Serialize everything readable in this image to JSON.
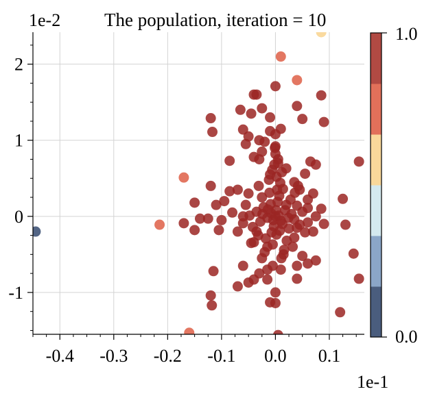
{
  "chart_data": {
    "type": "scatter",
    "title": "The population, iteration = 10",
    "x_offset_label": "1e-1",
    "y_offset_label": "1e-2",
    "xlim": [
      -0.045,
      0.0165
    ],
    "ylim": [
      -0.0155,
      0.0242
    ],
    "grid": true,
    "x_ticks": [
      -0.04,
      -0.03,
      -0.02,
      -0.01,
      0.0,
      0.01
    ],
    "x_tick_labels": [
      "-0.4",
      "-0.3",
      "-0.2",
      "-0.1",
      "0.0",
      "0.1"
    ],
    "y_ticks": [
      -0.01,
      0.0,
      0.01,
      0.02
    ],
    "y_tick_labels": [
      "-1",
      "0",
      "1",
      "2"
    ],
    "colorbar": {
      "min_label": "0.0",
      "max_label": "1.0",
      "colors": [
        "#4a5d7e",
        "#8ba6c8",
        "#d4e9ef",
        "#fad89a",
        "#e2705a",
        "#b14a43"
      ]
    },
    "point_color": "#9b2623",
    "point_opacity": 0.85,
    "points": [
      {
        "x": 0.0004,
        "y": 0.0019
      },
      {
        "x": -0.0008,
        "y": 0.0004
      },
      {
        "x": 0.001,
        "y": -0.0006
      },
      {
        "x": -0.0015,
        "y": -0.0002
      },
      {
        "x": 0.0018,
        "y": 0.0008
      },
      {
        "x": -0.0003,
        "y": -0.0013
      },
      {
        "x": 0.0007,
        "y": 0.0027
      },
      {
        "x": -0.0022,
        "y": 0.0012
      },
      {
        "x": 0.0025,
        "y": -0.0016
      },
      {
        "x": -0.0011,
        "y": 0.0031
      },
      {
        "x": 0.0002,
        "y": -0.0024
      },
      {
        "x": 0.003,
        "y": 0.0003
      },
      {
        "x": -0.0028,
        "y": -0.0007
      },
      {
        "x": 0.0014,
        "y": 0.0036
      },
      {
        "x": -0.0018,
        "y": -0.0029
      },
      {
        "x": 0.0035,
        "y": -0.0004
      },
      {
        "x": -0.0035,
        "y": 0.0006
      },
      {
        "x": 0.0009,
        "y": 0.0044
      },
      {
        "x": -0.0005,
        "y": -0.0037
      },
      {
        "x": 0.004,
        "y": 0.0014
      },
      {
        "x": -0.0042,
        "y": -0.0014
      },
      {
        "x": 0.0021,
        "y": -0.0032
      },
      {
        "x": -0.0025,
        "y": 0.0025
      },
      {
        "x": 0.0045,
        "y": -0.0011
      },
      {
        "x": -0.0048,
        "y": 0.0001
      },
      {
        "x": 0.0002,
        "y": 0.0052
      },
      {
        "x": 0.005,
        "y": 0.0006
      },
      {
        "x": -0.0032,
        "y": -0.0025
      },
      {
        "x": 0.0028,
        "y": 0.0022
      },
      {
        "x": -0.0012,
        "y": 0.0048
      },
      {
        "x": 0.0016,
        "y": -0.0044
      },
      {
        "x": -0.0055,
        "y": 0.0015
      },
      {
        "x": 0.0055,
        "y": -0.0021
      },
      {
        "x": -0.002,
        "y": -0.0047
      },
      {
        "x": 0.0036,
        "y": 0.0031
      },
      {
        "x": -0.0006,
        "y": 0.0061
      },
      {
        "x": 0.006,
        "y": 0.0011
      },
      {
        "x": -0.006,
        "y": -0.0009
      },
      {
        "x": 0.0011,
        "y": -0.0055
      },
      {
        "x": 0.0001,
        "y": 0.0008
      },
      {
        "x": -0.0004,
        "y": -0.0005
      },
      {
        "x": 0.0006,
        "y": 0.0001
      },
      {
        "x": -0.0009,
        "y": 0.0016
      },
      {
        "x": 0.0013,
        "y": -0.001
      },
      {
        "x": 0.0,
        "y": 0.0
      },
      {
        "x": 0.0003,
        "y": 0.0035
      },
      {
        "x": -0.0002,
        "y": 0.0068
      },
      {
        "x": 0.0008,
        "y": -0.0019
      },
      {
        "x": -0.0014,
        "y": 0.0009
      },
      {
        "x": 0.002,
        "y": 0.0015
      },
      {
        "x": -0.0007,
        "y": -0.0021
      },
      {
        "x": 0.0024,
        "y": -0.0002
      },
      {
        "x": -0.0024,
        "y": 0.0003
      },
      {
        "x": 0.0012,
        "y": 0.0058
      },
      {
        "x": -0.0031,
        "y": 0.004
      },
      {
        "x": 0.0032,
        "y": -0.004
      },
      {
        "x": -0.004,
        "y": -0.0034
      },
      {
        "x": 0.0042,
        "y": 0.004
      },
      {
        "x": 0.0005,
        "y": 0.0075
      },
      {
        "x": -0.0001,
        "y": 0.009
      },
      {
        "x": -0.004,
        "y": 0.016
      },
      {
        "x": -0.0035,
        "y": 0.016
      },
      {
        "x": 0.0,
        "y": 0.0171
      },
      {
        "x": 0.0085,
        "y": 0.0159
      },
      {
        "x": 0.004,
        "y": 0.0145
      },
      {
        "x": -0.0065,
        "y": 0.014
      },
      {
        "x": -0.0025,
        "y": 0.0142
      },
      {
        "x": -0.0045,
        "y": 0.0135
      },
      {
        "x": 0.005,
        "y": 0.0128
      },
      {
        "x": -0.012,
        "y": 0.0129
      },
      {
        "x": 0.009,
        "y": 0.0124
      },
      {
        "x": -0.001,
        "y": 0.013
      },
      {
        "x": -0.0117,
        "y": 0.0111
      },
      {
        "x": -0.006,
        "y": 0.0114
      },
      {
        "x": -0.001,
        "y": 0.0112
      },
      {
        "x": 0.001,
        "y": 0.0115
      },
      {
        "x": -0.005,
        "y": 0.0105
      },
      {
        "x": -0.003,
        "y": 0.01
      },
      {
        "x": 0.0,
        "y": 0.0108
      },
      {
        "x": -0.0055,
        "y": 0.0095
      },
      {
        "x": -0.002,
        "y": 0.0098
      },
      {
        "x": 0.0,
        "y": 0.0092
      },
      {
        "x": -0.0025,
        "y": 0.0085
      },
      {
        "x": 0.0,
        "y": 0.0082
      },
      {
        "x": -0.004,
        "y": 0.0078
      },
      {
        "x": -0.0085,
        "y": 0.0073
      },
      {
        "x": -0.003,
        "y": 0.0075
      },
      {
        "x": 0.0005,
        "y": 0.007
      },
      {
        "x": 0.0065,
        "y": 0.0072
      },
      {
        "x": 0.0155,
        "y": 0.0072
      },
      {
        "x": 0.0075,
        "y": 0.0068
      },
      {
        "x": 0.002,
        "y": 0.0063
      },
      {
        "x": 0.0055,
        "y": 0.0056
      },
      {
        "x": -0.001,
        "y": 0.0055
      },
      {
        "x": 0.0035,
        "y": 0.0045
      },
      {
        "x": -0.012,
        "y": 0.004
      },
      {
        "x": -0.007,
        "y": 0.0035
      },
      {
        "x": -0.0085,
        "y": 0.0033
      },
      {
        "x": 0.0045,
        "y": 0.0035
      },
      {
        "x": 0.007,
        "y": 0.003
      },
      {
        "x": -0.005,
        "y": 0.003
      },
      {
        "x": 0.0125,
        "y": 0.0023
      },
      {
        "x": -0.0095,
        "y": 0.002
      },
      {
        "x": 0.006,
        "y": 0.0022
      },
      {
        "x": -0.015,
        "y": 0.0018
      },
      {
        "x": -0.011,
        "y": 0.0015
      },
      {
        "x": 0.0085,
        "y": 0.001
      },
      {
        "x": -0.008,
        "y": 0.0005
      },
      {
        "x": -0.006,
        "y": 0.0
      },
      {
        "x": 0.0075,
        "y": 0.0
      },
      {
        "x": -0.014,
        "y": -0.0003
      },
      {
        "x": -0.0125,
        "y": -0.0003
      },
      {
        "x": -0.01,
        "y": -0.0005
      },
      {
        "x": -0.017,
        "y": -0.0009
      },
      {
        "x": 0.006,
        "y": -0.0008
      },
      {
        "x": 0.013,
        "y": -0.0011
      },
      {
        "x": 0.009,
        "y": -0.001
      },
      {
        "x": -0.015,
        "y": -0.0018
      },
      {
        "x": -0.0105,
        "y": -0.0018
      },
      {
        "x": -0.007,
        "y": -0.002
      },
      {
        "x": 0.004,
        "y": -0.0015
      },
      {
        "x": 0.007,
        "y": -0.002
      },
      {
        "x": -0.0035,
        "y": -0.002
      },
      {
        "x": -0.0045,
        "y": -0.0035
      },
      {
        "x": 0.0035,
        "y": -0.0028
      },
      {
        "x": -0.0015,
        "y": -0.004
      },
      {
        "x": -0.0025,
        "y": -0.0055
      },
      {
        "x": 0.0015,
        "y": -0.005
      },
      {
        "x": 0.005,
        "y": -0.0052
      },
      {
        "x": -0.0005,
        "y": -0.0065
      },
      {
        "x": 0.004,
        "y": -0.0065
      },
      {
        "x": 0.0075,
        "y": -0.0058
      },
      {
        "x": 0.0145,
        "y": -0.0049
      },
      {
        "x": -0.006,
        "y": -0.0065
      },
      {
        "x": 0.006,
        "y": -0.0062
      },
      {
        "x": -0.0015,
        "y": -0.007
      },
      {
        "x": -0.003,
        "y": -0.0075
      },
      {
        "x": -0.0115,
        "y": -0.0072
      },
      {
        "x": 0.001,
        "y": -0.007
      },
      {
        "x": -0.004,
        "y": -0.0083
      },
      {
        "x": -0.0015,
        "y": -0.0083
      },
      {
        "x": 0.004,
        "y": -0.0082
      },
      {
        "x": 0.0155,
        "y": -0.0082
      },
      {
        "x": -0.005,
        "y": -0.0087
      },
      {
        "x": -0.007,
        "y": -0.0092
      },
      {
        "x": 0.0,
        "y": -0.01
      },
      {
        "x": -0.012,
        "y": -0.0104
      },
      {
        "x": -0.0118,
        "y": -0.0117
      },
      {
        "x": -0.001,
        "y": -0.0113
      },
      {
        "x": 0.0,
        "y": -0.0114
      },
      {
        "x": 0.012,
        "y": -0.0126
      },
      {
        "x": 0.0005,
        "y": -0.0156
      }
    ],
    "highlight_points": [
      {
        "x": 0.0085,
        "y": 0.0242,
        "color": "#fad89a"
      },
      {
        "x": 0.001,
        "y": 0.021,
        "color": "#e2705a"
      },
      {
        "x": 0.004,
        "y": 0.0179,
        "color": "#e2705a"
      },
      {
        "x": -0.017,
        "y": 0.0051,
        "color": "#e2705a"
      },
      {
        "x": -0.0215,
        "y": -0.0011,
        "color": "#e2705a"
      },
      {
        "x": -0.016,
        "y": -0.0153,
        "color": "#e2705a"
      },
      {
        "x": -0.0445,
        "y": -0.002,
        "color": "#4a5d7e"
      }
    ]
  }
}
